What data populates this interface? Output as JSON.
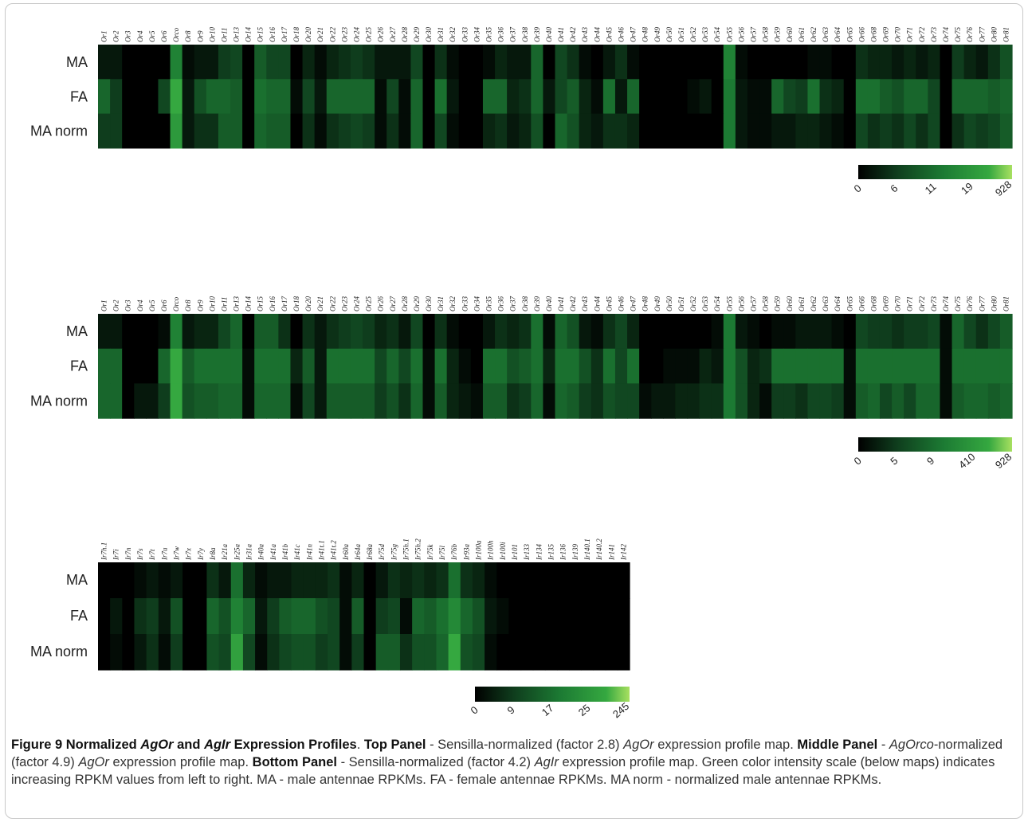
{
  "chart_data": [
    {
      "type": "heatmap",
      "rows": [
        "MA",
        "FA",
        "MA norm"
      ],
      "columns": [
        "Or1",
        "Or2",
        "Or3",
        "Or4",
        "Or5",
        "Or6",
        "Orco",
        "Or8",
        "Or9",
        "Or10",
        "Or11",
        "Or13",
        "Or14",
        "Or15",
        "Or16",
        "Or17",
        "Or18",
        "Or20",
        "Or21",
        "Or22",
        "Or23",
        "Or24",
        "Or25",
        "Or26",
        "Or27",
        "Or28",
        "Or29",
        "Or30",
        "Or31",
        "Or32",
        "Or33",
        "Or34",
        "Or35",
        "Or36",
        "Or37",
        "Or38",
        "Or39",
        "Or40",
        "Or41",
        "Or42",
        "Or43",
        "Or44",
        "Or45",
        "Or46",
        "Or47",
        "Or48",
        "Or49",
        "Or50",
        "Or51",
        "Or52",
        "Or53",
        "Or54",
        "Or55",
        "Or56",
        "Or57",
        "Or58",
        "Or59",
        "Or60",
        "Or61",
        "Or62",
        "Or63",
        "Or64",
        "Or65",
        "Or66",
        "Or68",
        "Or69",
        "Or70",
        "Or71",
        "Or72",
        "Or73",
        "Or74",
        "Or75",
        "Or76",
        "Or77",
        "Or80",
        "Or81"
      ],
      "values": [
        [
          0.1,
          0.1,
          0.0,
          0.0,
          0.0,
          0.0,
          0.6,
          0.05,
          0.1,
          0.1,
          0.25,
          0.3,
          0.0,
          0.4,
          0.3,
          0.3,
          0.0,
          0.15,
          0.05,
          0.15,
          0.2,
          0.25,
          0.2,
          0.1,
          0.1,
          0.1,
          0.3,
          0.0,
          0.2,
          0.05,
          0.0,
          0.0,
          0.05,
          0.15,
          0.1,
          0.1,
          0.45,
          0.0,
          0.3,
          0.2,
          0.05,
          0.0,
          0.1,
          0.2,
          0.05,
          0.0,
          0.0,
          0.0,
          0.0,
          0.0,
          0.0,
          0.0,
          0.6,
          0.05,
          0.0,
          0.0,
          0.0,
          0.0,
          0.0,
          0.05,
          0.05,
          0.0,
          0.0,
          0.2,
          0.15,
          0.15,
          0.1,
          0.15,
          0.1,
          0.15,
          0.0,
          0.25,
          0.15,
          0.1,
          0.2,
          0.35
        ],
        [
          0.45,
          0.25,
          0.0,
          0.0,
          0.0,
          0.3,
          0.85,
          0.1,
          0.35,
          0.45,
          0.45,
          0.4,
          0.0,
          0.5,
          0.45,
          0.45,
          0.05,
          0.3,
          0.1,
          0.45,
          0.45,
          0.45,
          0.45,
          0.05,
          0.3,
          0.05,
          0.45,
          0.0,
          0.5,
          0.1,
          0.0,
          0.0,
          0.45,
          0.45,
          0.15,
          0.2,
          0.45,
          0.1,
          0.3,
          0.4,
          0.15,
          0.05,
          0.5,
          0.1,
          0.45,
          0.0,
          0.0,
          0.0,
          0.0,
          0.05,
          0.1,
          0.0,
          0.55,
          0.1,
          0.05,
          0.05,
          0.45,
          0.3,
          0.25,
          0.5,
          0.2,
          0.15,
          0.0,
          0.5,
          0.5,
          0.4,
          0.35,
          0.45,
          0.45,
          0.3,
          0.0,
          0.45,
          0.45,
          0.45,
          0.4,
          0.45
        ],
        [
          0.25,
          0.25,
          0.0,
          0.0,
          0.0,
          0.0,
          0.75,
          0.1,
          0.2,
          0.2,
          0.4,
          0.4,
          0.0,
          0.45,
          0.4,
          0.4,
          0.0,
          0.2,
          0.05,
          0.2,
          0.25,
          0.3,
          0.25,
          0.05,
          0.2,
          0.05,
          0.45,
          0.0,
          0.3,
          0.05,
          0.0,
          0.0,
          0.15,
          0.2,
          0.1,
          0.15,
          0.35,
          0.0,
          0.45,
          0.35,
          0.15,
          0.1,
          0.2,
          0.2,
          0.15,
          0.0,
          0.0,
          0.0,
          0.0,
          0.0,
          0.0,
          0.0,
          0.55,
          0.1,
          0.05,
          0.05,
          0.1,
          0.1,
          0.15,
          0.15,
          0.1,
          0.05,
          0.0,
          0.3,
          0.2,
          0.25,
          0.2,
          0.3,
          0.2,
          0.3,
          0.0,
          0.2,
          0.3,
          0.25,
          0.3,
          0.4
        ]
      ],
      "colorbar": {
        "ticks": [
          "0",
          "6",
          "11",
          "19",
          "928"
        ],
        "colors": [
          "#000000",
          "#0f3d1d",
          "#1c7a33",
          "#35a840",
          "#a8e060"
        ]
      }
    },
    {
      "type": "heatmap",
      "rows": [
        "MA",
        "FA",
        "MA norm"
      ],
      "columns": [
        "Or1",
        "Or2",
        "Or3",
        "Or4",
        "Or5",
        "Or6",
        "Orco",
        "Or8",
        "Or9",
        "Or10",
        "Or11",
        "Or13",
        "Or14",
        "Or15",
        "Or16",
        "Or17",
        "Or18",
        "Or20",
        "Or21",
        "Or22",
        "Or23",
        "Or24",
        "Or25",
        "Or26",
        "Or27",
        "Or28",
        "Or29",
        "Or30",
        "Or31",
        "Or32",
        "Or33",
        "Or34",
        "Or35",
        "Or36",
        "Or37",
        "Or38",
        "Or39",
        "Or40",
        "Or41",
        "Or42",
        "Or43",
        "Or44",
        "Or45",
        "Or46",
        "Or47",
        "Or48",
        "Or49",
        "Or50",
        "Or51",
        "Or52",
        "Or53",
        "Or54",
        "Or55",
        "Or56",
        "Or57",
        "Or58",
        "Or59",
        "Or60",
        "Or61",
        "Or62",
        "Or63",
        "Or64",
        "Or65",
        "Or66",
        "Or68",
        "Or69",
        "Or70",
        "Or71",
        "Or72",
        "Or73",
        "Or74",
        "Or75",
        "Or76",
        "Or77",
        "Or80",
        "Or81"
      ],
      "values": [
        [
          0.1,
          0.1,
          0.0,
          0.0,
          0.0,
          0.05,
          0.6,
          0.1,
          0.15,
          0.15,
          0.3,
          0.45,
          0.0,
          0.4,
          0.4,
          0.2,
          0.0,
          0.2,
          0.1,
          0.2,
          0.25,
          0.3,
          0.25,
          0.15,
          0.2,
          0.1,
          0.3,
          0.0,
          0.2,
          0.05,
          0.0,
          0.0,
          0.1,
          0.2,
          0.15,
          0.2,
          0.5,
          0.05,
          0.45,
          0.35,
          0.1,
          0.05,
          0.2,
          0.3,
          0.15,
          0.0,
          0.0,
          0.0,
          0.0,
          0.0,
          0.0,
          0.05,
          0.55,
          0.1,
          0.05,
          0.0,
          0.05,
          0.05,
          0.1,
          0.1,
          0.1,
          0.05,
          0.0,
          0.3,
          0.25,
          0.25,
          0.2,
          0.25,
          0.25,
          0.3,
          0.05,
          0.45,
          0.3,
          0.2,
          0.3,
          0.4
        ],
        [
          0.45,
          0.45,
          0.0,
          0.0,
          0.0,
          0.45,
          0.85,
          0.4,
          0.5,
          0.5,
          0.5,
          0.5,
          0.05,
          0.5,
          0.5,
          0.5,
          0.15,
          0.4,
          0.1,
          0.5,
          0.5,
          0.5,
          0.5,
          0.3,
          0.45,
          0.3,
          0.5,
          0.05,
          0.5,
          0.15,
          0.05,
          0.0,
          0.5,
          0.5,
          0.35,
          0.4,
          0.5,
          0.15,
          0.5,
          0.5,
          0.35,
          0.2,
          0.5,
          0.3,
          0.5,
          0.0,
          0.0,
          0.05,
          0.05,
          0.05,
          0.15,
          0.1,
          0.55,
          0.35,
          0.15,
          0.2,
          0.5,
          0.5,
          0.5,
          0.5,
          0.5,
          0.5,
          0.05,
          0.5,
          0.5,
          0.5,
          0.5,
          0.5,
          0.5,
          0.5,
          0.05,
          0.5,
          0.5,
          0.5,
          0.5,
          0.5
        ],
        [
          0.45,
          0.45,
          0.0,
          0.1,
          0.1,
          0.25,
          0.85,
          0.35,
          0.4,
          0.4,
          0.45,
          0.45,
          0.05,
          0.45,
          0.45,
          0.45,
          0.05,
          0.3,
          0.1,
          0.4,
          0.4,
          0.4,
          0.4,
          0.25,
          0.35,
          0.2,
          0.45,
          0.05,
          0.4,
          0.15,
          0.1,
          0.05,
          0.4,
          0.4,
          0.2,
          0.25,
          0.45,
          0.05,
          0.45,
          0.4,
          0.25,
          0.2,
          0.35,
          0.3,
          0.3,
          0.05,
          0.1,
          0.1,
          0.15,
          0.15,
          0.2,
          0.2,
          0.55,
          0.35,
          0.15,
          0.05,
          0.25,
          0.25,
          0.2,
          0.3,
          0.3,
          0.25,
          0.05,
          0.4,
          0.45,
          0.3,
          0.4,
          0.3,
          0.45,
          0.45,
          0.05,
          0.4,
          0.45,
          0.45,
          0.4,
          0.45
        ]
      ],
      "colorbar": {
        "ticks": [
          "0",
          "5",
          "9",
          "410",
          "928"
        ],
        "colors": [
          "#000000",
          "#0f3d1d",
          "#1c7a33",
          "#35a840",
          "#a8e060"
        ]
      }
    },
    {
      "type": "heatmap",
      "rows": [
        "MA",
        "FA",
        "MA norm"
      ],
      "columns": [
        "Ir7h.1",
        "Ir7i",
        "Ir7n",
        "Ir7s",
        "Ir7t",
        "Ir7u",
        "Ir7w",
        "Ir7x",
        "Ir7y",
        "Ir8a",
        "Ir21a",
        "Ir25a",
        "Ir31a",
        "Ir40a",
        "Ir41a",
        "Ir41b",
        "Ir41c",
        "Ir41n",
        "Ir41t.1",
        "Ir41t.2",
        "Ir60a",
        "Ir64a",
        "Ir68a",
        "Ir75d",
        "Ir75g",
        "Ir75h.1",
        "Ir75h.2",
        "Ir75k",
        "Ir75l",
        "Ir76b",
        "Ir93a",
        "Ir100a",
        "Ir100h",
        "Ir100i",
        "Ir101",
        "Ir133",
        "Ir134",
        "Ir135",
        "Ir136",
        "Ir139",
        "Ir140.1",
        "Ir140.2",
        "Ir141",
        "Ir142"
      ],
      "values": [
        [
          0.0,
          0.0,
          0.0,
          0.05,
          0.1,
          0.05,
          0.1,
          0.0,
          0.0,
          0.2,
          0.1,
          0.5,
          0.15,
          0.05,
          0.1,
          0.1,
          0.15,
          0.15,
          0.15,
          0.2,
          0.05,
          0.15,
          0.0,
          0.1,
          0.2,
          0.15,
          0.2,
          0.15,
          0.2,
          0.5,
          0.2,
          0.15,
          0.05,
          0.0,
          0.0,
          0.0,
          0.0,
          0.0,
          0.0,
          0.0,
          0.0,
          0.0,
          0.0,
          0.0
        ],
        [
          0.0,
          0.1,
          0.0,
          0.2,
          0.25,
          0.1,
          0.35,
          0.0,
          0.0,
          0.45,
          0.35,
          0.6,
          0.45,
          0.1,
          0.25,
          0.4,
          0.45,
          0.45,
          0.35,
          0.3,
          0.05,
          0.4,
          0.0,
          0.25,
          0.3,
          0.05,
          0.45,
          0.4,
          0.5,
          0.65,
          0.45,
          0.35,
          0.1,
          0.05,
          0.0,
          0.0,
          0.0,
          0.0,
          0.0,
          0.0,
          0.0,
          0.0,
          0.0,
          0.0
        ],
        [
          0.0,
          0.05,
          0.0,
          0.1,
          0.2,
          0.05,
          0.25,
          0.0,
          0.0,
          0.35,
          0.3,
          0.8,
          0.3,
          0.05,
          0.2,
          0.3,
          0.35,
          0.35,
          0.25,
          0.3,
          0.05,
          0.25,
          0.0,
          0.4,
          0.4,
          0.2,
          0.35,
          0.35,
          0.45,
          0.85,
          0.35,
          0.3,
          0.05,
          0.0,
          0.0,
          0.0,
          0.0,
          0.0,
          0.0,
          0.0,
          0.0,
          0.0,
          0.0,
          0.0
        ]
      ],
      "colorbar": {
        "ticks": [
          "0",
          "9",
          "17",
          "25",
          "245"
        ],
        "colors": [
          "#000000",
          "#0f3d1d",
          "#1c7a33",
          "#35a840",
          "#a8e060"
        ]
      }
    }
  ],
  "caption": {
    "fig_label": "Figure 9 Normalized ",
    "fig_i1": "AgOr",
    "fig_and": " and ",
    "fig_i2": "AgIr",
    "fig_rest": " Expression Profiles",
    "s1": ". ",
    "top_label": "Top Panel",
    "top_text1": " - Sensilla-normalized (factor 2.8) ",
    "top_i": "AgOr",
    "top_text2": " expression profile map. ",
    "mid_label": "Middle Panel",
    "mid_text1": " - ",
    "mid_i": "AgOrco",
    "mid_text2": "-normalized (factor 4.9) ",
    "mid_i2": "AgOr",
    "mid_text3": " expression profile map. ",
    "bot_label": "Bottom Panel",
    "bot_text1": " - Sensilla-normalized (factor 4.2) ",
    "bot_i": "AgIr",
    "bot_text2": " expression profile map. Green color intensity scale (below maps) indicates increasing RPKM values from left to right. MA - male antennae RPKMs. FA - female antennae RPKMs. MA norm - normalized male antennae RPKMs."
  }
}
